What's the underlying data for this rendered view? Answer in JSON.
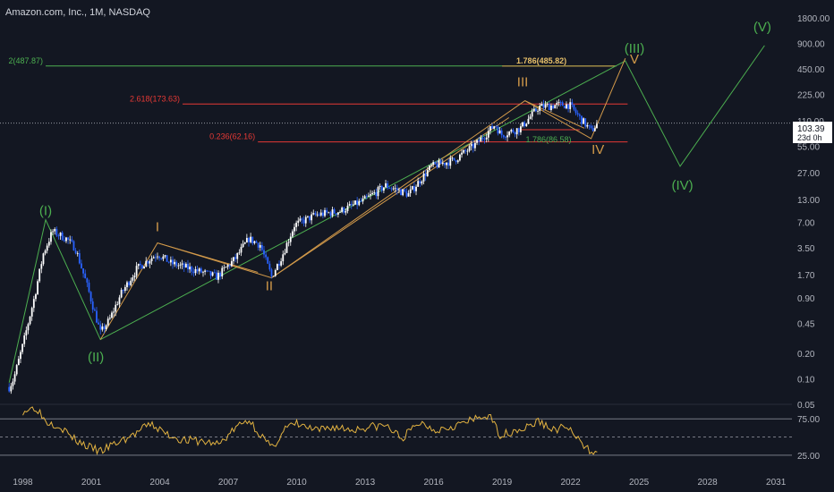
{
  "header": {
    "title": "Amazon.com, Inc., 1M, NASDAQ"
  },
  "price_badge": {
    "price": "103.39",
    "countdown": "23d 0h"
  },
  "colors": {
    "background": "#131722",
    "green": "#4caf50",
    "orange": "#d39a4a",
    "red": "#e53935",
    "candle_up": "#ffffff",
    "candle_down": "#2962ff",
    "rsi": "#e3b341"
  },
  "chart_data": {
    "type": "candlestick",
    "y_scale": "log",
    "ylim": [
      0.05,
      1800
    ],
    "xlim": [
      1997.0,
      2031.7
    ],
    "x_ticks": [
      "1998",
      "2001",
      "2004",
      "2007",
      "2010",
      "2013",
      "2016",
      "2019",
      "2022",
      "2025",
      "2028",
      "2031"
    ],
    "y_ticks": [
      "1800.00",
      "900.00",
      "450.00",
      "225.00",
      "110.00",
      "55.00",
      "27.00",
      "13.00",
      "7.00",
      "3.50",
      "1.70",
      "0.90",
      "0.45",
      "0.20",
      "0.10",
      "0.05"
    ],
    "price_path": [
      [
        1997.4,
        0.08
      ],
      [
        1997.6,
        0.1
      ],
      [
        1998.0,
        0.25
      ],
      [
        1998.5,
        0.9
      ],
      [
        1998.9,
        3.0
      ],
      [
        1999.3,
        5.5
      ],
      [
        1999.9,
        4.5
      ],
      [
        2000.3,
        3.5
      ],
      [
        2000.8,
        1.3
      ],
      [
        2001.4,
        0.35
      ],
      [
        2001.8,
        0.5
      ],
      [
        2002.3,
        1.0
      ],
      [
        2003.0,
        2.0
      ],
      [
        2003.9,
        3.0
      ],
      [
        2004.5,
        2.3
      ],
      [
        2005.3,
        2.0
      ],
      [
        2006.5,
        1.6
      ],
      [
        2007.3,
        2.6
      ],
      [
        2007.9,
        4.5
      ],
      [
        2008.4,
        3.8
      ],
      [
        2008.9,
        1.6
      ],
      [
        2009.4,
        3.0
      ],
      [
        2009.9,
        6.5
      ],
      [
        2010.8,
        8.5
      ],
      [
        2011.9,
        9.5
      ],
      [
        2012.9,
        12.5
      ],
      [
        2013.9,
        19.0
      ],
      [
        2014.9,
        15.0
      ],
      [
        2015.9,
        32.0
      ],
      [
        2016.9,
        38.0
      ],
      [
        2017.9,
        60.0
      ],
      [
        2018.7,
        100.0
      ],
      [
        2018.95,
        75.0
      ],
      [
        2019.8,
        90.0
      ],
      [
        2020.6,
        160.0
      ],
      [
        2021.5,
        170.0
      ],
      [
        2021.95,
        170.0
      ],
      [
        2022.4,
        120.0
      ],
      [
        2022.9,
        84.0
      ],
      [
        2023.2,
        103.4
      ]
    ],
    "fib_levels": [
      {
        "label": "2(487.87)",
        "value": 487.87,
        "x": [
          1999.0,
          2024.0
        ]
      },
      {
        "label": "1.786(485.82)",
        "value": 485.82,
        "x": [
          2019.0,
          2024.0
        ]
      },
      {
        "label": "2.618(173.63)",
        "value": 173.63,
        "x": [
          2005.0,
          2024.5
        ]
      },
      {
        "label": "0.236(62.16)",
        "value": 62.16,
        "x": [
          2008.3,
          2024.5
        ]
      },
      {
        "label": "1.786(86.58)",
        "value": 86.58,
        "x": [
          2019.8,
          2022.4
        ]
      }
    ],
    "wave_labels": [
      {
        "text": "(I)",
        "x": 1999.0,
        "y": 8.5,
        "color": "green"
      },
      {
        "text": "(II)",
        "x": 2001.2,
        "y": 0.16,
        "color": "green"
      },
      {
        "text": "(III)",
        "x": 2024.8,
        "y": 700,
        "color": "green"
      },
      {
        "text": "(IV)",
        "x": 2026.9,
        "y": 17.0,
        "color": "green"
      },
      {
        "text": "(V)",
        "x": 2030.4,
        "y": 1250,
        "color": "green"
      },
      {
        "text": "I",
        "x": 2003.9,
        "y": 5.5,
        "color": "orange"
      },
      {
        "text": "II",
        "x": 2008.8,
        "y": 1.1,
        "color": "orange"
      },
      {
        "text": "III",
        "x": 2019.9,
        "y": 280,
        "color": "orange"
      },
      {
        "text": "IV",
        "x": 2023.2,
        "y": 45,
        "color": "orange"
      },
      {
        "text": "V",
        "x": 2024.8,
        "y": 520,
        "color": "orange"
      }
    ],
    "rsi": {
      "ticks": [
        "75.00",
        "25.00"
      ],
      "ylim": [
        10,
        95
      ],
      "points": [
        [
          1998.0,
          86
        ],
        [
          1998.6,
          91
        ],
        [
          1999.0,
          72
        ],
        [
          1999.6,
          66
        ],
        [
          2000.2,
          48
        ],
        [
          2000.9,
          36
        ],
        [
          2001.4,
          30
        ],
        [
          2002.0,
          40
        ],
        [
          2002.8,
          52
        ],
        [
          2003.6,
          68
        ],
        [
          2004.3,
          54
        ],
        [
          2005.0,
          46
        ],
        [
          2005.8,
          44
        ],
        [
          2006.6,
          40
        ],
        [
          2007.3,
          62
        ],
        [
          2007.9,
          74
        ],
        [
          2008.5,
          50
        ],
        [
          2008.9,
          34
        ],
        [
          2009.5,
          62
        ],
        [
          2010.0,
          68
        ],
        [
          2010.9,
          58
        ],
        [
          2011.6,
          64
        ],
        [
          2012.4,
          60
        ],
        [
          2013.2,
          64
        ],
        [
          2013.9,
          66
        ],
        [
          2014.6,
          48
        ],
        [
          2015.4,
          70
        ],
        [
          2016.1,
          60
        ],
        [
          2016.9,
          66
        ],
        [
          2017.6,
          72
        ],
        [
          2018.4,
          80
        ],
        [
          2018.95,
          52
        ],
        [
          2019.6,
          60
        ],
        [
          2020.0,
          62
        ],
        [
          2020.6,
          72
        ],
        [
          2021.2,
          60
        ],
        [
          2021.9,
          64
        ],
        [
          2022.2,
          50
        ],
        [
          2022.6,
          36
        ],
        [
          2022.95,
          30
        ],
        [
          2023.2,
          36
        ]
      ]
    }
  }
}
